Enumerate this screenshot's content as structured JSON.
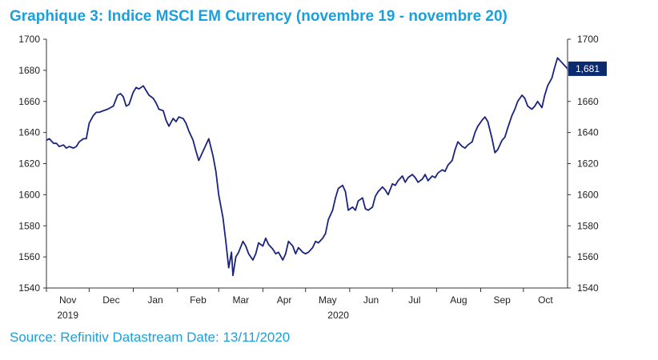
{
  "title": "Graphique 3: Indice MSCI EM Currency (novembre 19 - novembre 20)",
  "source": "Source: Refinitiv Datastream Date: 13/11/2020",
  "colors": {
    "title": "#1ba0dc",
    "line": "#1a237e",
    "axis": "#333333",
    "label_bg": "#0b2a6f"
  },
  "chart_data": {
    "type": "line",
    "title": "Graphique 3: Indice MSCI EM Currency (novembre 19 - novembre 20)",
    "xlabel": "",
    "ylabel": "",
    "ylim": [
      1540,
      1700
    ],
    "yticks": [
      1540,
      1560,
      1580,
      1600,
      1620,
      1640,
      1660,
      1680,
      1700
    ],
    "grid": false,
    "x_range": [
      "2019-11-13",
      "2020-11-13"
    ],
    "x_ticks": [
      {
        "label": "Nov",
        "date": "2019-11-13"
      },
      {
        "label": "Dec",
        "date": "2019-12-13"
      },
      {
        "label": "Jan",
        "date": "2020-01-13"
      },
      {
        "label": "Feb",
        "date": "2020-02-13"
      },
      {
        "label": "Mar",
        "date": "2020-03-13"
      },
      {
        "label": "Apr",
        "date": "2020-04-13"
      },
      {
        "label": "May",
        "date": "2020-05-13"
      },
      {
        "label": "Jun",
        "date": "2020-06-13"
      },
      {
        "label": "Jul",
        "date": "2020-07-13"
      },
      {
        "label": "Aug",
        "date": "2020-08-13"
      },
      {
        "label": "Sep",
        "date": "2020-09-13"
      },
      {
        "label": "Oct",
        "date": "2020-10-13"
      }
    ],
    "year_labels": [
      {
        "label": "2019",
        "date": "2019-11-28"
      },
      {
        "label": "2020",
        "date": "2020-06-05"
      }
    ],
    "last_value_label": "1,681",
    "series": [
      {
        "points": [
          [
            "2019-11-13",
            1635
          ],
          [
            "2019-11-15",
            1636
          ],
          [
            "2019-11-18",
            1633
          ],
          [
            "2019-11-20",
            1633
          ],
          [
            "2019-11-22",
            1631
          ],
          [
            "2019-11-25",
            1632
          ],
          [
            "2019-11-27",
            1630
          ],
          [
            "2019-11-29",
            1631
          ],
          [
            "2019-12-02",
            1630
          ],
          [
            "2019-12-04",
            1631
          ],
          [
            "2019-12-06",
            1634
          ],
          [
            "2019-12-09",
            1636
          ],
          [
            "2019-12-11",
            1636
          ],
          [
            "2019-12-13",
            1646
          ],
          [
            "2019-12-16",
            1651
          ],
          [
            "2019-12-18",
            1653
          ],
          [
            "2019-12-20",
            1653
          ],
          [
            "2019-12-23",
            1654
          ],
          [
            "2019-12-26",
            1655
          ],
          [
            "2019-12-30",
            1657
          ],
          [
            "2020-01-02",
            1664
          ],
          [
            "2020-01-04",
            1665
          ],
          [
            "2020-01-06",
            1663
          ],
          [
            "2020-01-08",
            1657
          ],
          [
            "2020-01-10",
            1658
          ],
          [
            "2020-01-13",
            1666
          ],
          [
            "2020-01-15",
            1669
          ],
          [
            "2020-01-17",
            1668
          ],
          [
            "2020-01-20",
            1670
          ],
          [
            "2020-01-22",
            1667
          ],
          [
            "2020-01-24",
            1664
          ],
          [
            "2020-01-27",
            1662
          ],
          [
            "2020-01-29",
            1659
          ],
          [
            "2020-01-31",
            1655
          ],
          [
            "2020-02-03",
            1654
          ],
          [
            "2020-02-05",
            1648
          ],
          [
            "2020-02-07",
            1644
          ],
          [
            "2020-02-10",
            1649
          ],
          [
            "2020-02-12",
            1647
          ],
          [
            "2020-02-14",
            1650
          ],
          [
            "2020-02-17",
            1649
          ],
          [
            "2020-02-19",
            1646
          ],
          [
            "2020-02-21",
            1641
          ],
          [
            "2020-02-24",
            1635
          ],
          [
            "2020-02-26",
            1628
          ],
          [
            "2020-02-28",
            1622
          ],
          [
            "2020-03-02",
            1628
          ],
          [
            "2020-03-04",
            1632
          ],
          [
            "2020-03-06",
            1636
          ],
          [
            "2020-03-09",
            1625
          ],
          [
            "2020-03-11",
            1615
          ],
          [
            "2020-03-13",
            1600
          ],
          [
            "2020-03-16",
            1585
          ],
          [
            "2020-03-18",
            1570
          ],
          [
            "2020-03-20",
            1553
          ],
          [
            "2020-03-22",
            1563
          ],
          [
            "2020-03-23",
            1548
          ],
          [
            "2020-03-25",
            1560
          ],
          [
            "2020-03-27",
            1563
          ],
          [
            "2020-03-30",
            1570
          ],
          [
            "2020-04-01",
            1567
          ],
          [
            "2020-04-03",
            1562
          ],
          [
            "2020-04-06",
            1558
          ],
          [
            "2020-04-08",
            1562
          ],
          [
            "2020-04-10",
            1569
          ],
          [
            "2020-04-13",
            1567
          ],
          [
            "2020-04-15",
            1572
          ],
          [
            "2020-04-17",
            1568
          ],
          [
            "2020-04-20",
            1565
          ],
          [
            "2020-04-22",
            1562
          ],
          [
            "2020-04-24",
            1563
          ],
          [
            "2020-04-27",
            1558
          ],
          [
            "2020-04-29",
            1562
          ],
          [
            "2020-05-01",
            1570
          ],
          [
            "2020-05-04",
            1567
          ],
          [
            "2020-05-06",
            1562
          ],
          [
            "2020-05-08",
            1566
          ],
          [
            "2020-05-11",
            1563
          ],
          [
            "2020-05-13",
            1562
          ],
          [
            "2020-05-15",
            1563
          ],
          [
            "2020-05-18",
            1566
          ],
          [
            "2020-05-20",
            1570
          ],
          [
            "2020-05-22",
            1569
          ],
          [
            "2020-05-25",
            1572
          ],
          [
            "2020-05-27",
            1575
          ],
          [
            "2020-05-29",
            1584
          ],
          [
            "2020-06-01",
            1590
          ],
          [
            "2020-06-03",
            1598
          ],
          [
            "2020-06-05",
            1604
          ],
          [
            "2020-06-08",
            1606
          ],
          [
            "2020-06-10",
            1602
          ],
          [
            "2020-06-12",
            1590
          ],
          [
            "2020-06-15",
            1592
          ],
          [
            "2020-06-17",
            1590
          ],
          [
            "2020-06-19",
            1596
          ],
          [
            "2020-06-22",
            1598
          ],
          [
            "2020-06-24",
            1591
          ],
          [
            "2020-06-26",
            1590
          ],
          [
            "2020-06-29",
            1592
          ],
          [
            "2020-07-01",
            1599
          ],
          [
            "2020-07-03",
            1602
          ],
          [
            "2020-07-06",
            1605
          ],
          [
            "2020-07-08",
            1603
          ],
          [
            "2020-07-10",
            1600
          ],
          [
            "2020-07-13",
            1607
          ],
          [
            "2020-07-15",
            1606
          ],
          [
            "2020-07-17",
            1609
          ],
          [
            "2020-07-20",
            1612
          ],
          [
            "2020-07-22",
            1608
          ],
          [
            "2020-07-24",
            1611
          ],
          [
            "2020-07-27",
            1613
          ],
          [
            "2020-07-29",
            1611
          ],
          [
            "2020-07-31",
            1608
          ],
          [
            "2020-08-03",
            1610
          ],
          [
            "2020-08-05",
            1613
          ],
          [
            "2020-08-07",
            1609
          ],
          [
            "2020-08-10",
            1612
          ],
          [
            "2020-08-12",
            1611
          ],
          [
            "2020-08-14",
            1614
          ],
          [
            "2020-08-17",
            1616
          ],
          [
            "2020-08-19",
            1615
          ],
          [
            "2020-08-21",
            1619
          ],
          [
            "2020-08-24",
            1622
          ],
          [
            "2020-08-26",
            1629
          ],
          [
            "2020-08-28",
            1634
          ],
          [
            "2020-08-31",
            1631
          ],
          [
            "2020-09-02",
            1630
          ],
          [
            "2020-09-04",
            1632
          ],
          [
            "2020-09-07",
            1634
          ],
          [
            "2020-09-09",
            1640
          ],
          [
            "2020-09-11",
            1644
          ],
          [
            "2020-09-14",
            1648
          ],
          [
            "2020-09-16",
            1650
          ],
          [
            "2020-09-18",
            1647
          ],
          [
            "2020-09-21",
            1636
          ],
          [
            "2020-09-23",
            1627
          ],
          [
            "2020-09-25",
            1629
          ],
          [
            "2020-09-28",
            1635
          ],
          [
            "2020-09-30",
            1637
          ],
          [
            "2020-10-02",
            1643
          ],
          [
            "2020-10-05",
            1651
          ],
          [
            "2020-10-07",
            1655
          ],
          [
            "2020-10-09",
            1660
          ],
          [
            "2020-10-12",
            1664
          ],
          [
            "2020-10-14",
            1662
          ],
          [
            "2020-10-16",
            1657
          ],
          [
            "2020-10-19",
            1655
          ],
          [
            "2020-10-21",
            1657
          ],
          [
            "2020-10-23",
            1660
          ],
          [
            "2020-10-26",
            1656
          ],
          [
            "2020-10-28",
            1664
          ],
          [
            "2020-10-30",
            1670
          ],
          [
            "2020-11-02",
            1675
          ],
          [
            "2020-11-04",
            1682
          ],
          [
            "2020-11-06",
            1688
          ],
          [
            "2020-11-09",
            1685
          ],
          [
            "2020-11-11",
            1683
          ],
          [
            "2020-11-13",
            1681
          ]
        ]
      }
    ]
  }
}
